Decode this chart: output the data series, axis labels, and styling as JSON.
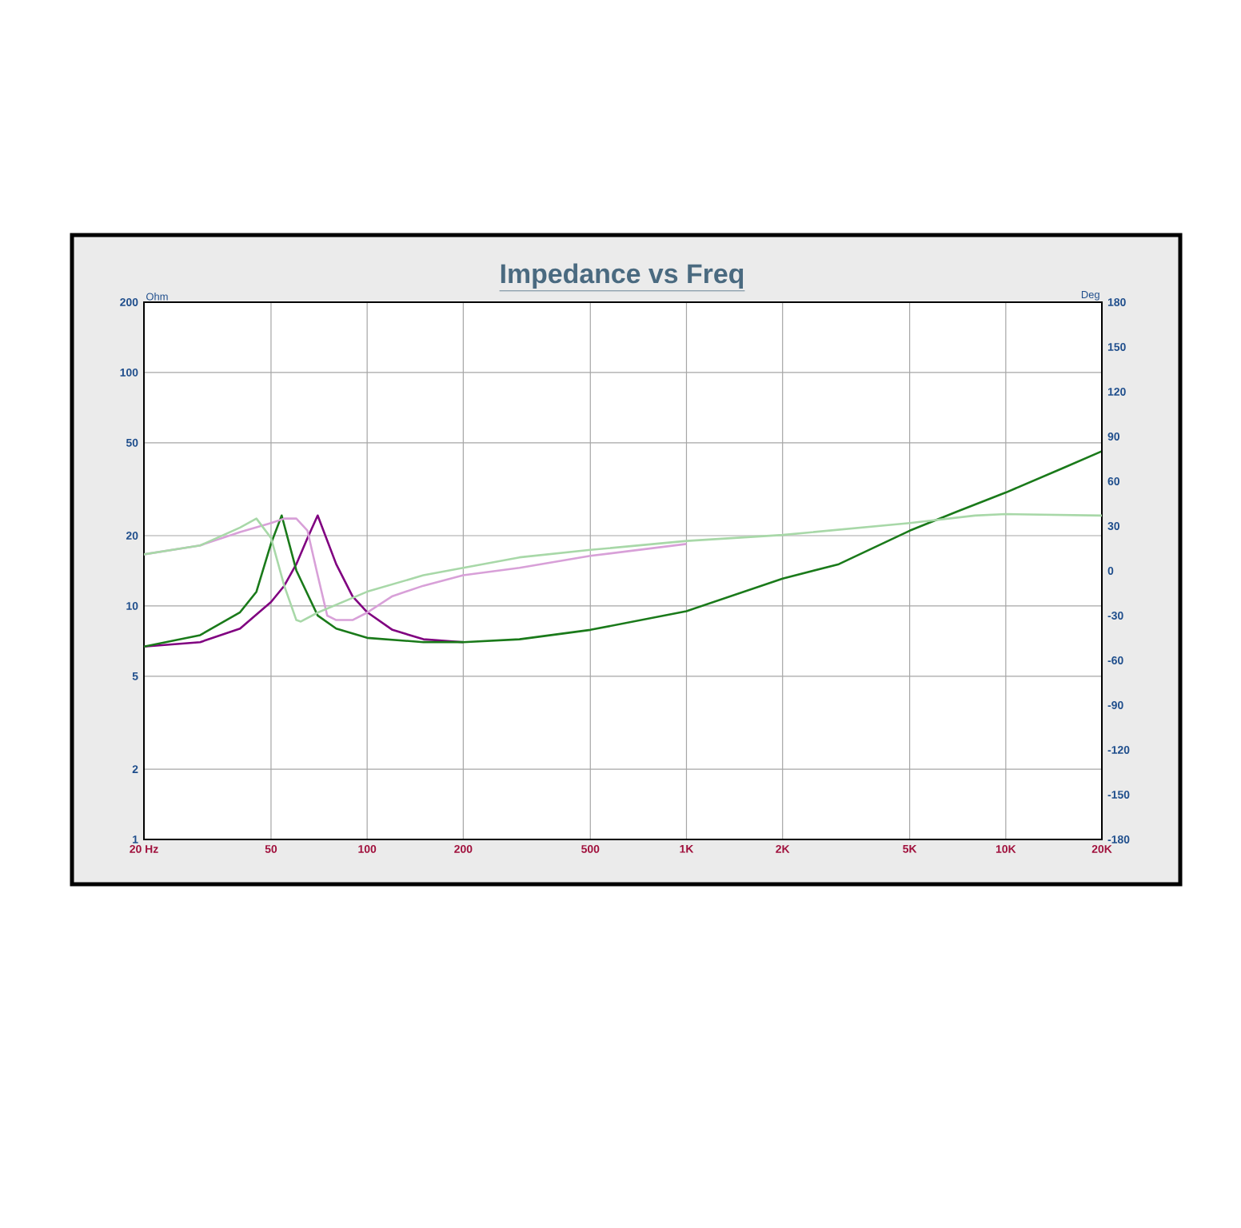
{
  "chart_data": {
    "type": "line",
    "title": "Impedance vs Freq",
    "ylabel": "Ohm",
    "y2label": "Deg",
    "xlim": [
      20,
      20000
    ],
    "ylim": [
      1,
      200
    ],
    "y2lim": [
      -180,
      180
    ],
    "log": "xy",
    "grid": true,
    "xticks": [
      {
        "value": 20,
        "label": "20 Hz"
      },
      50,
      100,
      200,
      500,
      {
        "value": 1000,
        "label": "1K"
      },
      {
        "value": 2000,
        "label": "2K"
      },
      {
        "value": 5000,
        "label": "5K"
      },
      {
        "value": 10000,
        "label": "10K"
      },
      {
        "value": 20000,
        "label": "20K"
      }
    ],
    "yticks": [
      1,
      2,
      5,
      10,
      20,
      50,
      100,
      200
    ],
    "y2ticks": [
      -180,
      -150,
      -120,
      -90,
      -60,
      -30,
      0,
      30,
      60,
      90,
      120,
      150,
      180
    ],
    "series": [
      {
        "color": "#d8a0d8",
        "axis": "y2",
        "x": [
          20,
          30,
          40,
          50,
          55,
          60,
          65,
          70,
          75,
          80,
          90,
          100,
          120,
          150,
          200,
          300,
          500,
          1000
        ],
        "values": [
          11,
          17,
          26,
          32,
          35,
          35,
          27,
          -3,
          -30,
          -33,
          -33,
          -28,
          -17,
          -10,
          -3,
          2,
          10,
          18
        ]
      },
      {
        "color": "#a8d8a8",
        "axis": "y2",
        "x": [
          20,
          30,
          40,
          45,
          50,
          55,
          60,
          62,
          70,
          100,
          150,
          200,
          300,
          500,
          1000,
          2000,
          5000,
          8000,
          10000,
          20000
        ],
        "values": [
          11,
          17,
          29,
          35,
          22,
          -10,
          -33,
          -34,
          -28,
          -14,
          -3,
          2,
          9,
          14,
          20,
          24,
          32,
          37,
          38,
          37
        ]
      },
      {
        "color": "#800080",
        "x": [
          20,
          30,
          40,
          50,
          55,
          60,
          65,
          70,
          80,
          90,
          100,
          120,
          150,
          200
        ],
        "values": [
          6.7,
          7.0,
          8.0,
          10.4,
          12.2,
          15.1,
          19.5,
          24.4,
          15.1,
          11.0,
          9.4,
          7.9,
          7.2,
          7.0
        ]
      },
      {
        "color": "#1a7a1a",
        "x": [
          20,
          30,
          40,
          45,
          50,
          54,
          60,
          70,
          80,
          100,
          150,
          200,
          300,
          500,
          1000,
          2000,
          3000,
          5000,
          7000,
          10000,
          15000,
          20000
        ],
        "values": [
          6.7,
          7.5,
          9.4,
          11.5,
          18.5,
          24.4,
          14.2,
          9.1,
          8.0,
          7.3,
          7.0,
          7.0,
          7.2,
          7.9,
          9.5,
          13.1,
          15.1,
          21,
          25.3,
          30.6,
          38.8,
          46
        ]
      }
    ]
  }
}
